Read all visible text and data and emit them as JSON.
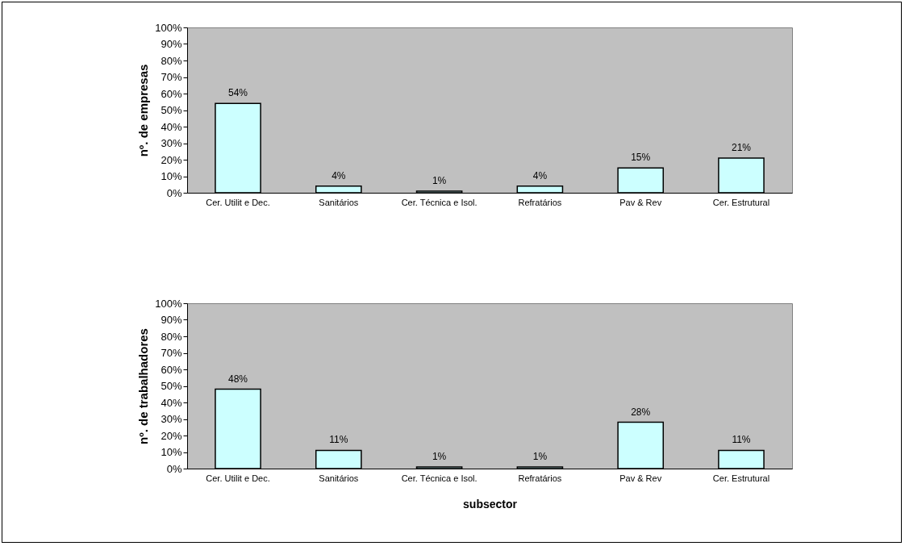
{
  "chart_data": [
    {
      "type": "bar",
      "ylabel": "nº. de empresas",
      "categories": [
        "Cer. Utilit e Dec.",
        "Sanitários",
        "Cer. Técnica e Isol.",
        "Refratários",
        "Pav & Rev",
        "Cer. Estrutural"
      ],
      "values": [
        54,
        4,
        1,
        4,
        15,
        21
      ],
      "value_labels": [
        "54%",
        "4%",
        "1%",
        "4%",
        "15%",
        "21%"
      ],
      "color": "#ccffff",
      "ylim": [
        0,
        100
      ],
      "yticks": [
        {
          "value": 0,
          "label": "0%"
        },
        {
          "value": 10,
          "label": "10%"
        },
        {
          "value": 20,
          "label": "20%"
        },
        {
          "value": 30,
          "label": "30%"
        },
        {
          "value": 40,
          "label": "40%"
        },
        {
          "value": 50,
          "label": "50%"
        },
        {
          "value": 60,
          "label": "60%"
        },
        {
          "value": 70,
          "label": "70%"
        },
        {
          "value": 80,
          "label": "80%"
        },
        {
          "value": 90,
          "label": "90%"
        },
        {
          "value": 100,
          "label": "100%"
        }
      ],
      "grid": false
    },
    {
      "type": "bar",
      "ylabel": "nº. de trabalhadores",
      "xlabel": "subsector",
      "categories": [
        "Cer. Utilit e Dec.",
        "Sanitários",
        "Cer. Técnica e Isol.",
        "Refratários",
        "Pav & Rev",
        "Cer. Estrutural"
      ],
      "values": [
        48,
        11,
        1,
        1,
        28,
        11
      ],
      "value_labels": [
        "48%",
        "11%",
        "1%",
        "1%",
        "28%",
        "11%"
      ],
      "color": "#ccffff",
      "ylim": [
        0,
        100
      ],
      "yticks": [
        {
          "value": 0,
          "label": "0%"
        },
        {
          "value": 10,
          "label": "10%"
        },
        {
          "value": 20,
          "label": "20%"
        },
        {
          "value": 30,
          "label": "30%"
        },
        {
          "value": 40,
          "label": "40%"
        },
        {
          "value": 50,
          "label": "50%"
        },
        {
          "value": 60,
          "label": "60%"
        },
        {
          "value": 70,
          "label": "70%"
        },
        {
          "value": 80,
          "label": "80%"
        },
        {
          "value": 90,
          "label": "90%"
        },
        {
          "value": 100,
          "label": "100%"
        }
      ],
      "grid": false
    }
  ]
}
